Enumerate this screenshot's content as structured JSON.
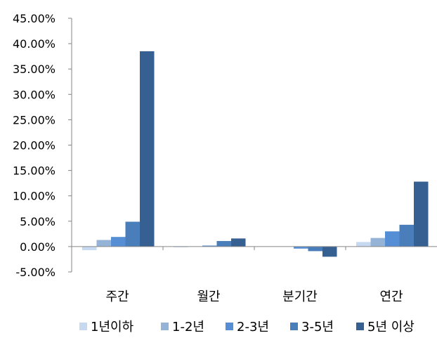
{
  "chart_data": {
    "type": "bar",
    "categories": [
      "주간",
      "월간",
      "분기간",
      "연간"
    ],
    "series": [
      {
        "name": "1년이하",
        "color": "#c6d9f1",
        "values": [
          -0.7,
          -0.1,
          0.0,
          0.9
        ]
      },
      {
        "name": "1-2년",
        "color": "#95b3d7",
        "values": [
          1.3,
          0.0,
          0.0,
          1.7
        ]
      },
      {
        "name": "2-3년",
        "color": "#558ed5",
        "values": [
          1.9,
          0.2,
          -0.4,
          3.0
        ]
      },
      {
        "name": "3-5년",
        "color": "#4a7ebb",
        "values": [
          4.9,
          1.1,
          -0.9,
          4.3
        ]
      },
      {
        "name": "5년 이상",
        "color": "#376092",
        "values": [
          38.5,
          1.6,
          -2.0,
          12.8
        ]
      }
    ],
    "y_ticks": [
      "45.00%",
      "40.00%",
      "35.00%",
      "30.00%",
      "25.00%",
      "20.00%",
      "15.00%",
      "10.00%",
      "5.00%",
      "0.00%",
      "-5.00%"
    ],
    "ylim": [
      -5,
      45
    ],
    "y_unit": "%",
    "grid": false,
    "legend_position": "bottom"
  }
}
